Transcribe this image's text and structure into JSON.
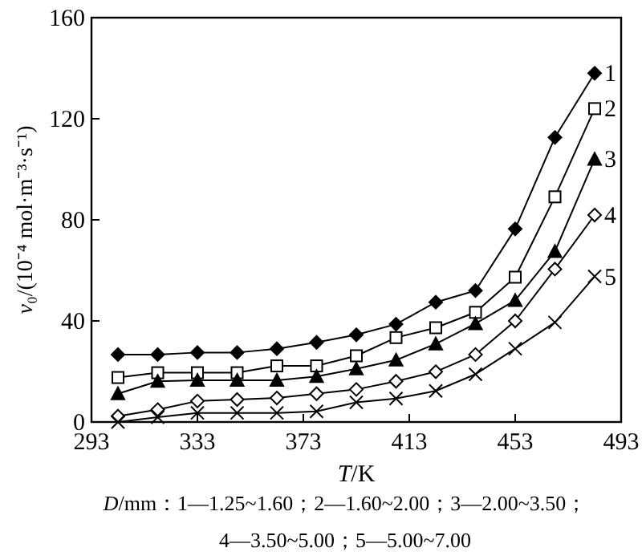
{
  "chart_data": {
    "type": "line",
    "xlabel": "T/K",
    "ylabel": "v₀/(10⁻⁴ mol·m⁻³·s⁻¹)",
    "x": [
      303,
      318,
      333,
      348,
      363,
      378,
      393,
      408,
      423,
      438,
      453,
      468,
      483
    ],
    "xlim": [
      293,
      493
    ],
    "xticks": [
      293,
      333,
      373,
      413,
      453,
      493
    ],
    "ylim": [
      0,
      160
    ],
    "yticks": [
      0,
      40,
      80,
      120,
      160
    ],
    "grid": false,
    "line_style": "solid",
    "series": [
      {
        "name": "1",
        "color": "#000000",
        "marker": "diamond",
        "values": [
          26.7,
          26.7,
          27.5,
          27.5,
          29,
          31.5,
          34.5,
          38.7,
          47.4,
          52,
          76.4,
          112.6,
          138
        ]
      },
      {
        "name": "2",
        "color": "#000000",
        "marker": "square",
        "values": [
          17.6,
          19.5,
          19.5,
          19.5,
          22.2,
          22.2,
          26.2,
          33.4,
          37.3,
          43.4,
          57.3,
          89.1,
          124
        ]
      },
      {
        "name": "3",
        "color": "#000000",
        "marker": "triangle",
        "values": [
          11.2,
          16.1,
          16.5,
          16.5,
          16.5,
          18,
          21,
          24.5,
          30.9,
          38.9,
          48.1,
          67.5,
          104
        ]
      },
      {
        "name": "4",
        "color": "#000000",
        "marker": "diamond",
        "values": [
          2.3,
          4.9,
          8.3,
          8.9,
          9.5,
          11.2,
          12.9,
          16.1,
          19.9,
          26.7,
          40,
          60.5,
          81.9
        ]
      },
      {
        "name": "5",
        "color": "#000000",
        "marker": "cross",
        "values": [
          0,
          1.9,
          3.6,
          3.6,
          3.6,
          4.2,
          7.8,
          9.3,
          12.3,
          18.9,
          29,
          39.4,
          57.6
        ]
      }
    ],
    "annotations": [
      "D/mm：1—1.25~1.60；2—1.60~2.00；3—2.00~3.50；",
      "4—3.50~5.00；5—5.00~7.00"
    ]
  }
}
